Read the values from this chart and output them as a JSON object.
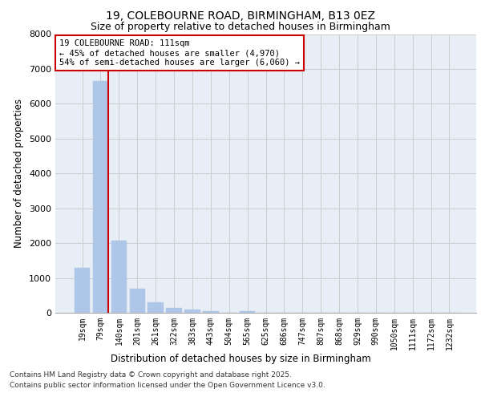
{
  "title_line1": "19, COLEBOURNE ROAD, BIRMINGHAM, B13 0EZ",
  "title_line2": "Size of property relative to detached houses in Birmingham",
  "xlabel": "Distribution of detached houses by size in Birmingham",
  "ylabel": "Number of detached properties",
  "categories": [
    "19sqm",
    "79sqm",
    "140sqm",
    "201sqm",
    "261sqm",
    "322sqm",
    "383sqm",
    "443sqm",
    "504sqm",
    "565sqm",
    "625sqm",
    "686sqm",
    "747sqm",
    "807sqm",
    "868sqm",
    "929sqm",
    "990sqm",
    "1050sqm",
    "1111sqm",
    "1172sqm",
    "1232sqm"
  ],
  "values": [
    1300,
    6650,
    2080,
    680,
    295,
    135,
    85,
    50,
    0,
    45,
    0,
    0,
    0,
    0,
    0,
    0,
    0,
    0,
    0,
    0,
    0
  ],
  "bar_color": "#aec6e8",
  "bar_edgecolor": "#aec6e8",
  "vline_x_index": 1,
  "vline_color": "#cc0000",
  "annotation_text": "19 COLEBOURNE ROAD: 111sqm\n← 45% of detached houses are smaller (4,970)\n54% of semi-detached houses are larger (6,060) →",
  "annotation_box_facecolor": "#ffffff",
  "annotation_box_edgecolor": "#cc0000",
  "ylim": [
    0,
    8000
  ],
  "yticks": [
    0,
    1000,
    2000,
    3000,
    4000,
    5000,
    6000,
    7000,
    8000
  ],
  "grid_color": "#cccccc",
  "bg_color": "#e8eef5",
  "footer_line1": "Contains HM Land Registry data © Crown copyright and database right 2025.",
  "footer_line2": "Contains public sector information licensed under the Open Government Licence v3.0.",
  "title_fontsize": 10,
  "subtitle_fontsize": 9,
  "axis_label_fontsize": 8.5,
  "tick_fontsize": 7,
  "annotation_fontsize": 7.5,
  "footer_fontsize": 6.5
}
